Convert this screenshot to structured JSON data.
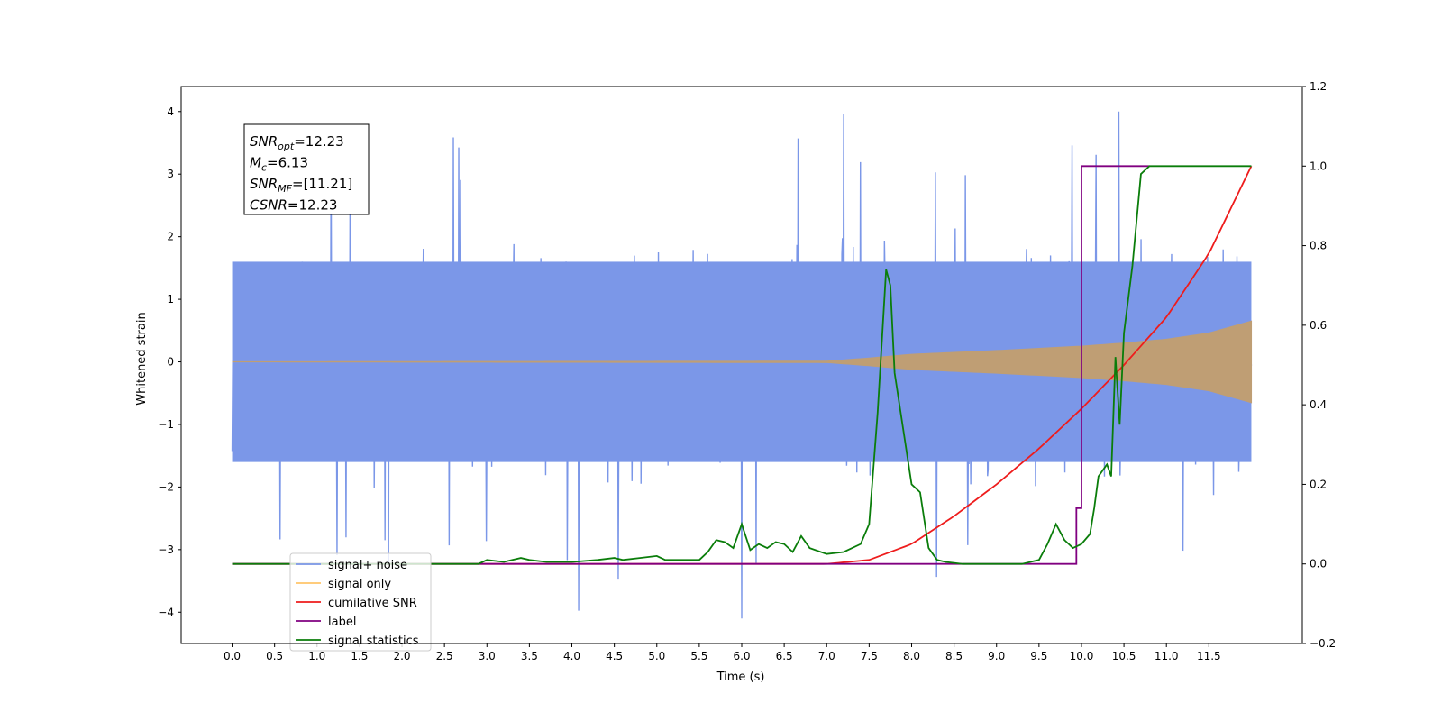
{
  "chart_data": {
    "type": "line",
    "xlabel": "Time (s)",
    "ylabel": "Whitened strain",
    "xlim": [
      -0.6,
      12.6
    ],
    "ylim_left": [
      -4.5,
      4.4
    ],
    "ylim_right": [
      -0.2,
      1.2
    ],
    "x_ticks": [
      0.0,
      0.5,
      1.0,
      1.5,
      2.0,
      2.5,
      3.0,
      3.5,
      4.0,
      4.5,
      5.0,
      5.5,
      6.0,
      6.5,
      7.0,
      7.5,
      8.0,
      8.5,
      9.0,
      9.5,
      10.0,
      10.5,
      11.0,
      11.5
    ],
    "x_tick_labels": [
      "0.0",
      "0.5",
      "1.0",
      "1.5",
      "2.0",
      "2.5",
      "3.0",
      "3.5",
      "4.0",
      "4.5",
      "5.0",
      "5.5",
      "6.0",
      "6.5",
      "7.0",
      "7.5",
      "8.0",
      "8.5",
      "9.0",
      "9.5",
      "10.0",
      "10.5",
      "11.0",
      "11.5"
    ],
    "y_ticks_left": [
      -4,
      -3,
      -2,
      -1,
      0,
      1,
      2,
      3,
      4
    ],
    "y_tick_labels_left": [
      "−4",
      "−3",
      "−2",
      "−1",
      "0",
      "1",
      "2",
      "3",
      "4"
    ],
    "y_ticks_right": [
      -0.2,
      0.0,
      0.2,
      0.4,
      0.6,
      0.8,
      1.0,
      1.2
    ],
    "y_tick_labels_right": [
      "−0.2",
      "0.0",
      "0.2",
      "0.4",
      "0.6",
      "0.8",
      "1.0",
      "1.2"
    ],
    "grid": false,
    "legend_position": "lower-left",
    "legend": [
      "signal+ noise",
      "signal only",
      "cumilative SNR",
      "label",
      "signal statistics"
    ],
    "series": [
      {
        "name": "signal+ noise",
        "axis": "left",
        "color": "#7b97e8",
        "kind": "noisy_band",
        "x_range": [
          0.0,
          12.0
        ],
        "core_amplitude": 1.6,
        "max_peak": 4.0,
        "min_peak": -4.1
      },
      {
        "name": "signal only",
        "axis": "left",
        "color": "#bf9e74",
        "kind": "chirp_envelope",
        "envelope_x": [
          0.0,
          7.0,
          7.5,
          8.0,
          9.0,
          10.0,
          10.5,
          11.0,
          11.5,
          12.0
        ],
        "envelope_y": [
          0.0,
          0.01,
          0.06,
          0.12,
          0.18,
          0.25,
          0.3,
          0.36,
          0.46,
          0.65
        ]
      },
      {
        "name": "cumilative SNR",
        "axis": "right",
        "color": "#ee1c1c",
        "x": [
          0.0,
          7.0,
          7.5,
          8.0,
          8.5,
          9.0,
          9.5,
          10.0,
          10.5,
          11.0,
          11.5,
          12.0
        ],
        "y": [
          0.0,
          0.0,
          0.01,
          0.05,
          0.12,
          0.2,
          0.29,
          0.39,
          0.5,
          0.62,
          0.78,
          1.0
        ]
      },
      {
        "name": "label",
        "axis": "right",
        "color": "#800080",
        "x": [
          0.0,
          9.94,
          9.94,
          10.0,
          10.0,
          10.8
        ],
        "y": [
          0.0,
          0.0,
          0.14,
          0.14,
          1.0,
          1.0
        ]
      },
      {
        "name": "signal statistics",
        "axis": "right",
        "color": "#0a7d0a",
        "x": [
          0.0,
          2.6,
          2.9,
          3.0,
          3.2,
          3.3,
          3.4,
          3.5,
          3.7,
          4.0,
          4.3,
          4.5,
          4.6,
          4.8,
          5.0,
          5.1,
          5.3,
          5.5,
          5.6,
          5.7,
          5.8,
          5.9,
          6.0,
          6.1,
          6.2,
          6.3,
          6.4,
          6.5,
          6.6,
          6.7,
          6.8,
          7.0,
          7.2,
          7.4,
          7.5,
          7.6,
          7.7,
          7.75,
          7.8,
          7.9,
          8.0,
          8.1,
          8.2,
          8.3,
          8.4,
          8.6,
          9.0,
          9.3,
          9.5,
          9.6,
          9.7,
          9.8,
          9.9,
          10.0,
          10.1,
          10.15,
          10.2,
          10.3,
          10.35,
          10.4,
          10.45,
          10.5,
          10.6,
          10.7,
          10.8,
          10.9,
          11.0,
          12.0
        ],
        "y": [
          0.0,
          0.0,
          0.0,
          0.01,
          0.005,
          0.01,
          0.015,
          0.01,
          0.005,
          0.005,
          0.01,
          0.015,
          0.01,
          0.015,
          0.02,
          0.01,
          0.01,
          0.01,
          0.03,
          0.06,
          0.055,
          0.04,
          0.1,
          0.035,
          0.05,
          0.04,
          0.055,
          0.05,
          0.03,
          0.07,
          0.04,
          0.025,
          0.03,
          0.05,
          0.1,
          0.38,
          0.74,
          0.7,
          0.48,
          0.34,
          0.2,
          0.18,
          0.04,
          0.01,
          0.005,
          0.0,
          0.0,
          0.0,
          0.01,
          0.05,
          0.1,
          0.06,
          0.04,
          0.05,
          0.075,
          0.14,
          0.22,
          0.25,
          0.22,
          0.52,
          0.35,
          0.58,
          0.75,
          0.98,
          1.0,
          1.0,
          1.0,
          1.0
        ]
      }
    ],
    "annotation": {
      "position": "upper-left",
      "lines": [
        {
          "base": "SNR",
          "sub": "opt",
          "value": "=12.23"
        },
        {
          "base": "M",
          "sub": "c",
          "value": "=6.13"
        },
        {
          "base": "SNR",
          "sub": "MF",
          "value": "=[11.21]"
        },
        {
          "base": "CSNR",
          "sub": "",
          "value": "=12.23"
        }
      ]
    }
  }
}
